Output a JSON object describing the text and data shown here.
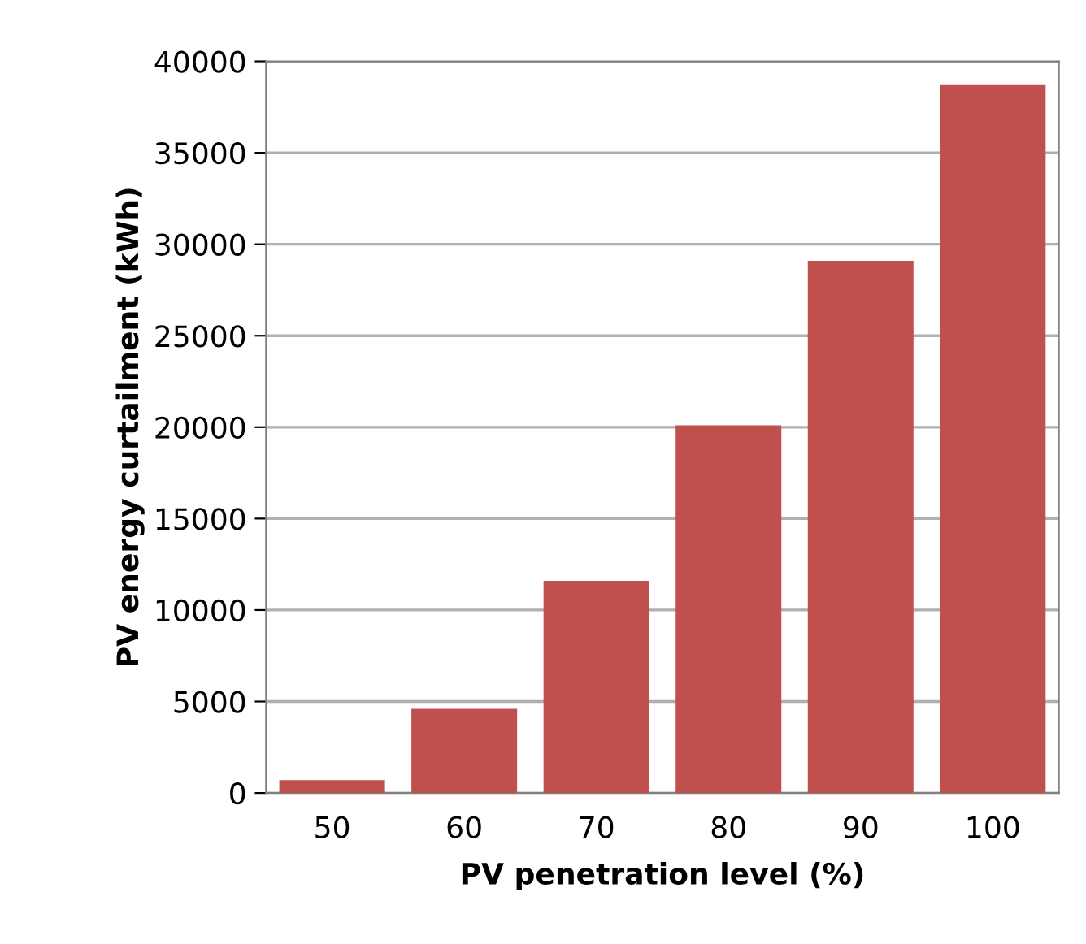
{
  "chart_data": {
    "type": "bar",
    "xlabel": "PV penetration level (%)",
    "ylabel": "PV energy curtailment (kWh)",
    "categories": [
      "50",
      "60",
      "70",
      "80",
      "90",
      "100"
    ],
    "values": [
      700,
      4600,
      11600,
      20100,
      29100,
      38700
    ],
    "color": "#c0504d",
    "ylim": [
      0,
      40000
    ],
    "yticks": [
      0,
      5000,
      10000,
      15000,
      20000,
      25000,
      30000,
      35000,
      40000
    ],
    "grid": "y"
  }
}
